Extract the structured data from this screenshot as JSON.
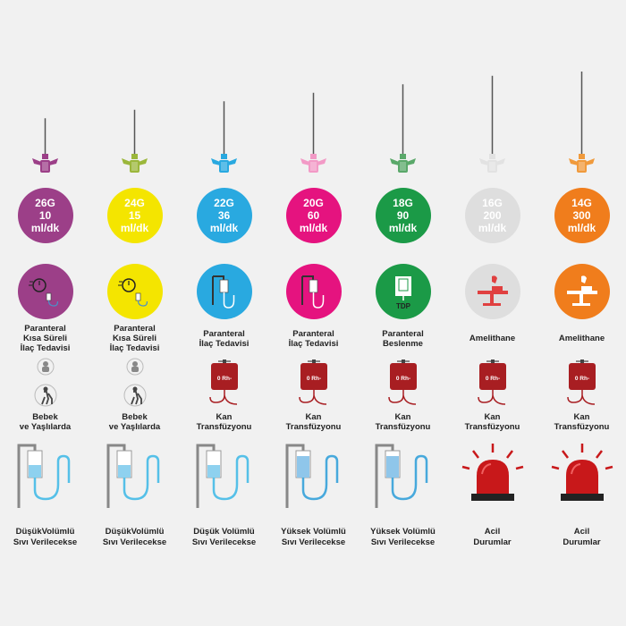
{
  "columns": [
    {
      "gauge": "26G",
      "flow": "10",
      "unit": "ml/dk",
      "color": "#9c3f88",
      "needle_len": 0.45,
      "use_icon": "timer-drip-icon",
      "use_lines": [
        "Paranteral",
        "Kısa Süreli",
        "İlaç Tedavisi"
      ],
      "patient_icon": "baby-elderly-icon",
      "patient_lines": [
        "Bebek",
        "ve Yaşlılarda"
      ],
      "volume_icon": "iv-bag-low-volume-icon",
      "volume_lines": [
        "DüşükVolümlü",
        "Sıvı Verilecekse"
      ]
    },
    {
      "gauge": "24G",
      "flow": "15",
      "unit": "ml/dk",
      "color": "#9bb73b",
      "circle_color": "#f4e500",
      "needle_len": 0.55,
      "use_icon": "timer-drip-icon",
      "use_lines": [
        "Paranteral",
        "Kısa Süreli",
        "İlaç Tedavisi"
      ],
      "patient_icon": "baby-elderly-icon",
      "patient_lines": [
        "Bebek",
        "ve Yaşlılarda"
      ],
      "volume_icon": "iv-bag-low-volume-icon",
      "volume_lines": [
        "DüşükVolümlü",
        "Sıvı Verilecekse"
      ]
    },
    {
      "gauge": "22G",
      "flow": "36",
      "unit": "ml/dk",
      "color": "#29a9e0",
      "needle_len": 0.65,
      "use_icon": "iv-drip-icon",
      "use_lines": [
        "Paranteral",
        "İlaç Tedavisi"
      ],
      "patient_icon": "blood-bag-icon",
      "patient_lines": [
        "Kan",
        "Transfüzyonu"
      ],
      "volume_icon": "iv-bag-low-volume-icon",
      "volume_lines": [
        "Düşük Volümlü",
        "Sıvı Verilecekse"
      ]
    },
    {
      "gauge": "20G",
      "flow": "60",
      "unit": "ml/dk",
      "color": "#e5137f",
      "wing_color": "#f29ac6",
      "needle_len": 0.75,
      "use_icon": "iv-drip-icon",
      "use_lines": [
        "Paranteral",
        "İlaç Tedavisi"
      ],
      "patient_icon": "blood-bag-icon",
      "patient_lines": [
        "Kan",
        "Transfüzyonu"
      ],
      "volume_icon": "iv-bag-high-volume-icon",
      "volume_lines": [
        "Yüksek Volümlü",
        "Sıvı Verilecekse"
      ]
    },
    {
      "gauge": "18G",
      "flow": "90",
      "unit": "ml/dk",
      "color": "#1b9a47",
      "wing_color": "#5aa86a",
      "needle_len": 0.85,
      "use_icon": "tdp-bag-icon",
      "use_lines": [
        "Paranteral",
        "Beslenme"
      ],
      "use_badge": "TDP",
      "patient_icon": "blood-bag-icon",
      "patient_lines": [
        "Kan",
        "Transfüzyonu"
      ],
      "volume_icon": "iv-bag-high-volume-icon",
      "volume_lines": [
        "Yüksek Volümlü",
        "Sıvı Verilecekse"
      ]
    },
    {
      "gauge": "16G",
      "flow": "200",
      "unit": "ml/dk",
      "color": "#dedede",
      "wing_color": "#e2e2e2",
      "needle_len": 0.95,
      "use_icon": "surgery-table-icon",
      "use_lines": [
        "Amelithane"
      ],
      "patient_icon": "blood-bag-icon",
      "patient_lines": [
        "Kan",
        "Transfüzyonu"
      ],
      "volume_icon": "emergency-siren-icon",
      "volume_lines": [
        "Acil",
        "Durumlar"
      ]
    },
    {
      "gauge": "14G",
      "flow": "300",
      "unit": "ml/dk",
      "color": "#f07d1c",
      "wing_color": "#f09a3c",
      "needle_len": 1.0,
      "use_icon": "surgery-table-icon",
      "use_lines": [
        "Amelithane"
      ],
      "patient_icon": "blood-bag-icon",
      "patient_lines": [
        "Kan",
        "Transfüzyonu"
      ],
      "volume_icon": "emergency-siren-icon",
      "volume_lines": [
        "Acil",
        "Durumlar"
      ]
    }
  ],
  "blood_label": "0 Rh-"
}
